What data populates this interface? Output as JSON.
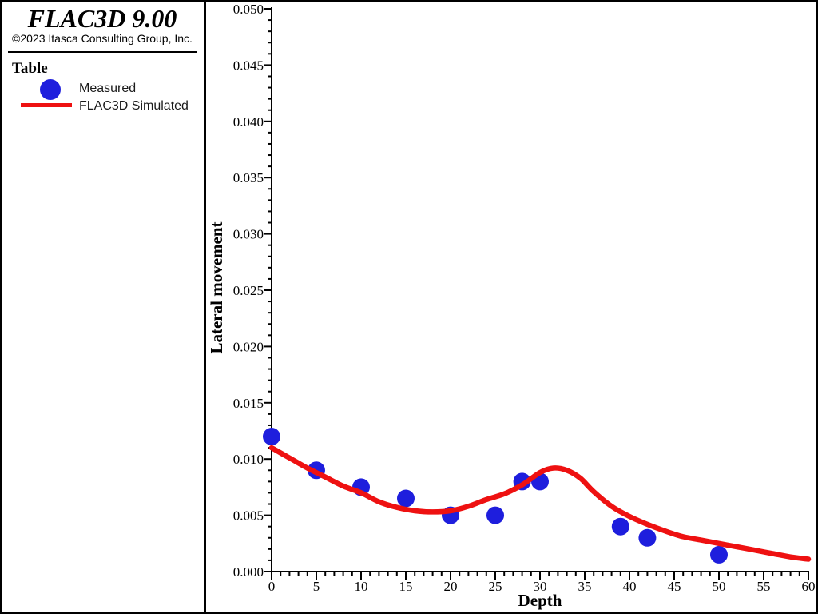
{
  "window": {
    "background": "#ffffff",
    "border_color": "#000000"
  },
  "header": {
    "title": "FLAC3D 9.00",
    "copyright": "©2023 Itasca Consulting Group, Inc."
  },
  "legend": {
    "heading": "Table",
    "items": [
      {
        "label": "Measured",
        "marker": "circle-icon",
        "color": "#1e1edd"
      },
      {
        "label": "FLAC3D Simulated",
        "marker": "line-icon",
        "color": "#ee1111"
      }
    ]
  },
  "chart_data": {
    "type": "scatter",
    "title": "",
    "xlabel": "Depth",
    "ylabel": "Lateral movement",
    "xlim": [
      0,
      60
    ],
    "ylim": [
      0,
      0.05
    ],
    "grid": false,
    "legend_position": "left-panel",
    "x_tick_labels": [
      "0",
      "5",
      "10",
      "15",
      "20",
      "25",
      "30",
      "35",
      "40",
      "45",
      "50",
      "55",
      "60"
    ],
    "y_tick_labels": [
      "0.000",
      "0.005",
      "0.010",
      "0.015",
      "0.020",
      "0.025",
      "0.030",
      "0.035",
      "0.040",
      "0.045",
      "0.050"
    ],
    "x_minor_step": 1,
    "y_minor_step": 0.001,
    "axis_color": "#000000",
    "series": [
      {
        "name": "Measured",
        "type": "scatter",
        "color": "#1e1edd",
        "x": [
          0,
          5,
          10,
          15,
          20,
          25,
          28,
          30,
          39,
          42,
          50
        ],
        "y": [
          0.012,
          0.009,
          0.0075,
          0.0065,
          0.005,
          0.005,
          0.008,
          0.008,
          0.004,
          0.003,
          0.0015
        ]
      },
      {
        "name": "FLAC3D Simulated",
        "type": "line",
        "color": "#ee1111",
        "x": [
          0,
          2,
          4,
          6,
          8,
          10,
          12,
          14,
          16,
          18,
          20,
          22,
          24,
          26,
          28,
          30,
          31.5,
          33,
          34.5,
          36,
          38,
          40,
          42,
          44,
          46,
          48,
          50,
          52,
          54,
          56,
          58,
          60
        ],
        "y": [
          0.011,
          0.0101,
          0.0092,
          0.0084,
          0.0076,
          0.007,
          0.0062,
          0.0057,
          0.0054,
          0.0053,
          0.0054,
          0.0058,
          0.0064,
          0.0069,
          0.0077,
          0.0088,
          0.0092,
          0.009,
          0.0083,
          0.0071,
          0.0058,
          0.0049,
          0.0042,
          0.0036,
          0.0031,
          0.0028,
          0.0025,
          0.0022,
          0.0019,
          0.0016,
          0.0013,
          0.0011
        ]
      }
    ]
  }
}
